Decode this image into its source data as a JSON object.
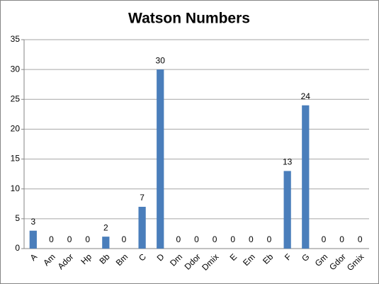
{
  "chart_data": {
    "type": "bar",
    "title": "Watson Numbers",
    "categories": [
      "A",
      "Am",
      "Ador",
      "Hp",
      "Bb",
      "Bm",
      "C",
      "D",
      "Dm",
      "Ddor",
      "Dmix",
      "E",
      "Em",
      "Eb",
      "F",
      "G",
      "Gm",
      "Gdor",
      "Gmix"
    ],
    "values": [
      3,
      0,
      0,
      0,
      2,
      0,
      7,
      30,
      0,
      0,
      0,
      0,
      0,
      0,
      13,
      24,
      0,
      0,
      0
    ],
    "color": "#4a7ebb",
    "ylim": [
      0,
      35
    ],
    "yticks": [
      0,
      5,
      10,
      15,
      20,
      25,
      30,
      35
    ],
    "grid": true,
    "data_labels": true
  }
}
